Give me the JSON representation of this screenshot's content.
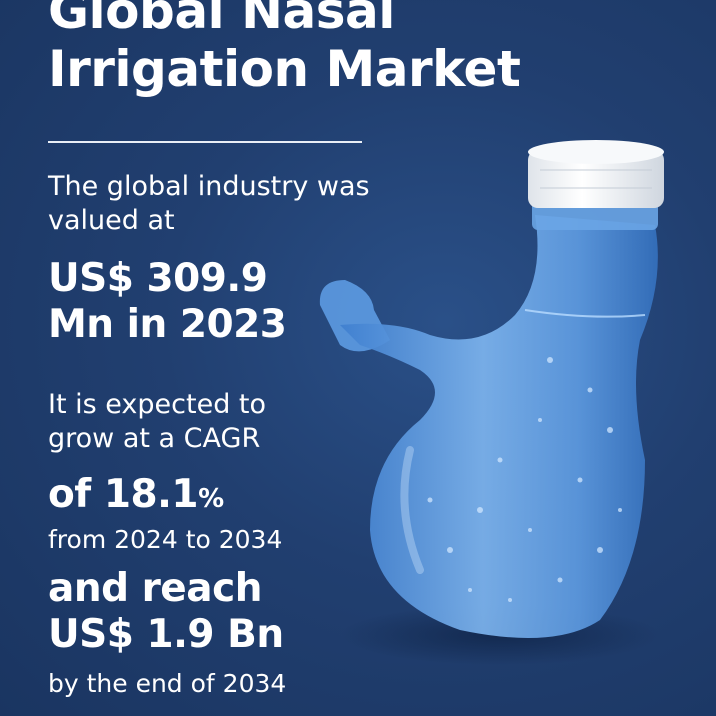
{
  "heading": {
    "line1": "Global Nasal",
    "line2": "Irrigation Market"
  },
  "stats": {
    "intro_line1": "The global industry was",
    "intro_line2": "valued at",
    "value_2023_line1": "US$ 309.9",
    "value_2023_line2": "Mn in 2023",
    "growth_line1": "It is expected to",
    "growth_line2": "grow at a CAGR",
    "cagr_prefix": "of 18.1",
    "cagr_symbol": "%",
    "period": "from 2024 to 2034",
    "reach_line1": "and reach",
    "reach_line2": "US$ 1.9 Bn",
    "end_text": "by the end of 2034"
  },
  "colors": {
    "background": "#1f4071",
    "text": "#ffffff",
    "bottle": "#5b9be0",
    "cap": "#f2f4f7"
  },
  "image": {
    "subject": "neti-pot-bottle-illustration"
  }
}
